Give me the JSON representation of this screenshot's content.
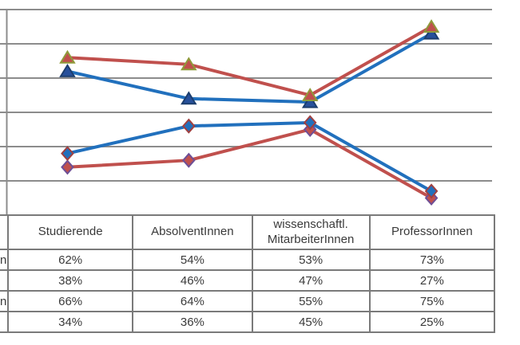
{
  "chart_data": {
    "type": "line",
    "title": "",
    "categories": [
      "Studierende",
      "AbsolventInnen",
      "wissenschaftl. MitarbeiterInnen",
      "ProfessorInnen"
    ],
    "series": [
      {
        "label_fragment": "n",
        "values": [
          62,
          54,
          53,
          73
        ],
        "unit": "%",
        "line_color": "#2170BD",
        "marker": "triangle",
        "marker_fill": "#27509B",
        "marker_stroke": "#1C3E6E"
      },
      {
        "label_fragment": "",
        "values": [
          38,
          46,
          47,
          27
        ],
        "unit": "%",
        "line_color": "#2170BD",
        "marker": "diamond",
        "marker_fill": "#2170BD",
        "marker_stroke": "#A04040"
      },
      {
        "label_fragment": "n",
        "values": [
          66,
          64,
          55,
          75
        ],
        "unit": "%",
        "line_color": "#C0504D",
        "marker": "triangle",
        "marker_fill": "#C0504D",
        "marker_stroke": "#8F9A3A"
      },
      {
        "label_fragment": "",
        "values": [
          34,
          36,
          45,
          25
        ],
        "unit": "%",
        "line_color": "#C0504D",
        "marker": "diamond",
        "marker_fill": "#C0504D",
        "marker_stroke": "#6E4F96"
      }
    ],
    "ylim": [
      20,
      80
    ],
    "gridline_step": 10,
    "grid": true,
    "legend_position": "none",
    "grid_color": "#8C8C8C",
    "draw_order": [
      0,
      3,
      1,
      2
    ]
  },
  "table": {
    "border_color": "#7A7A7A",
    "columns": [
      "Studierende",
      "AbsolventInnen",
      "wissenschaftl. MitarbeiterInnen",
      "ProfessorInnen"
    ],
    "rows": [
      {
        "label_fragment": "n",
        "values": [
          "62%",
          "54%",
          "53%",
          "73%"
        ]
      },
      {
        "label_fragment": "",
        "values": [
          "38%",
          "46%",
          "47%",
          "27%"
        ]
      },
      {
        "label_fragment": "n",
        "values": [
          "66%",
          "64%",
          "55%",
          "75%"
        ]
      },
      {
        "label_fragment": "",
        "values": [
          "34%",
          "36%",
          "45%",
          "25%"
        ]
      }
    ]
  }
}
